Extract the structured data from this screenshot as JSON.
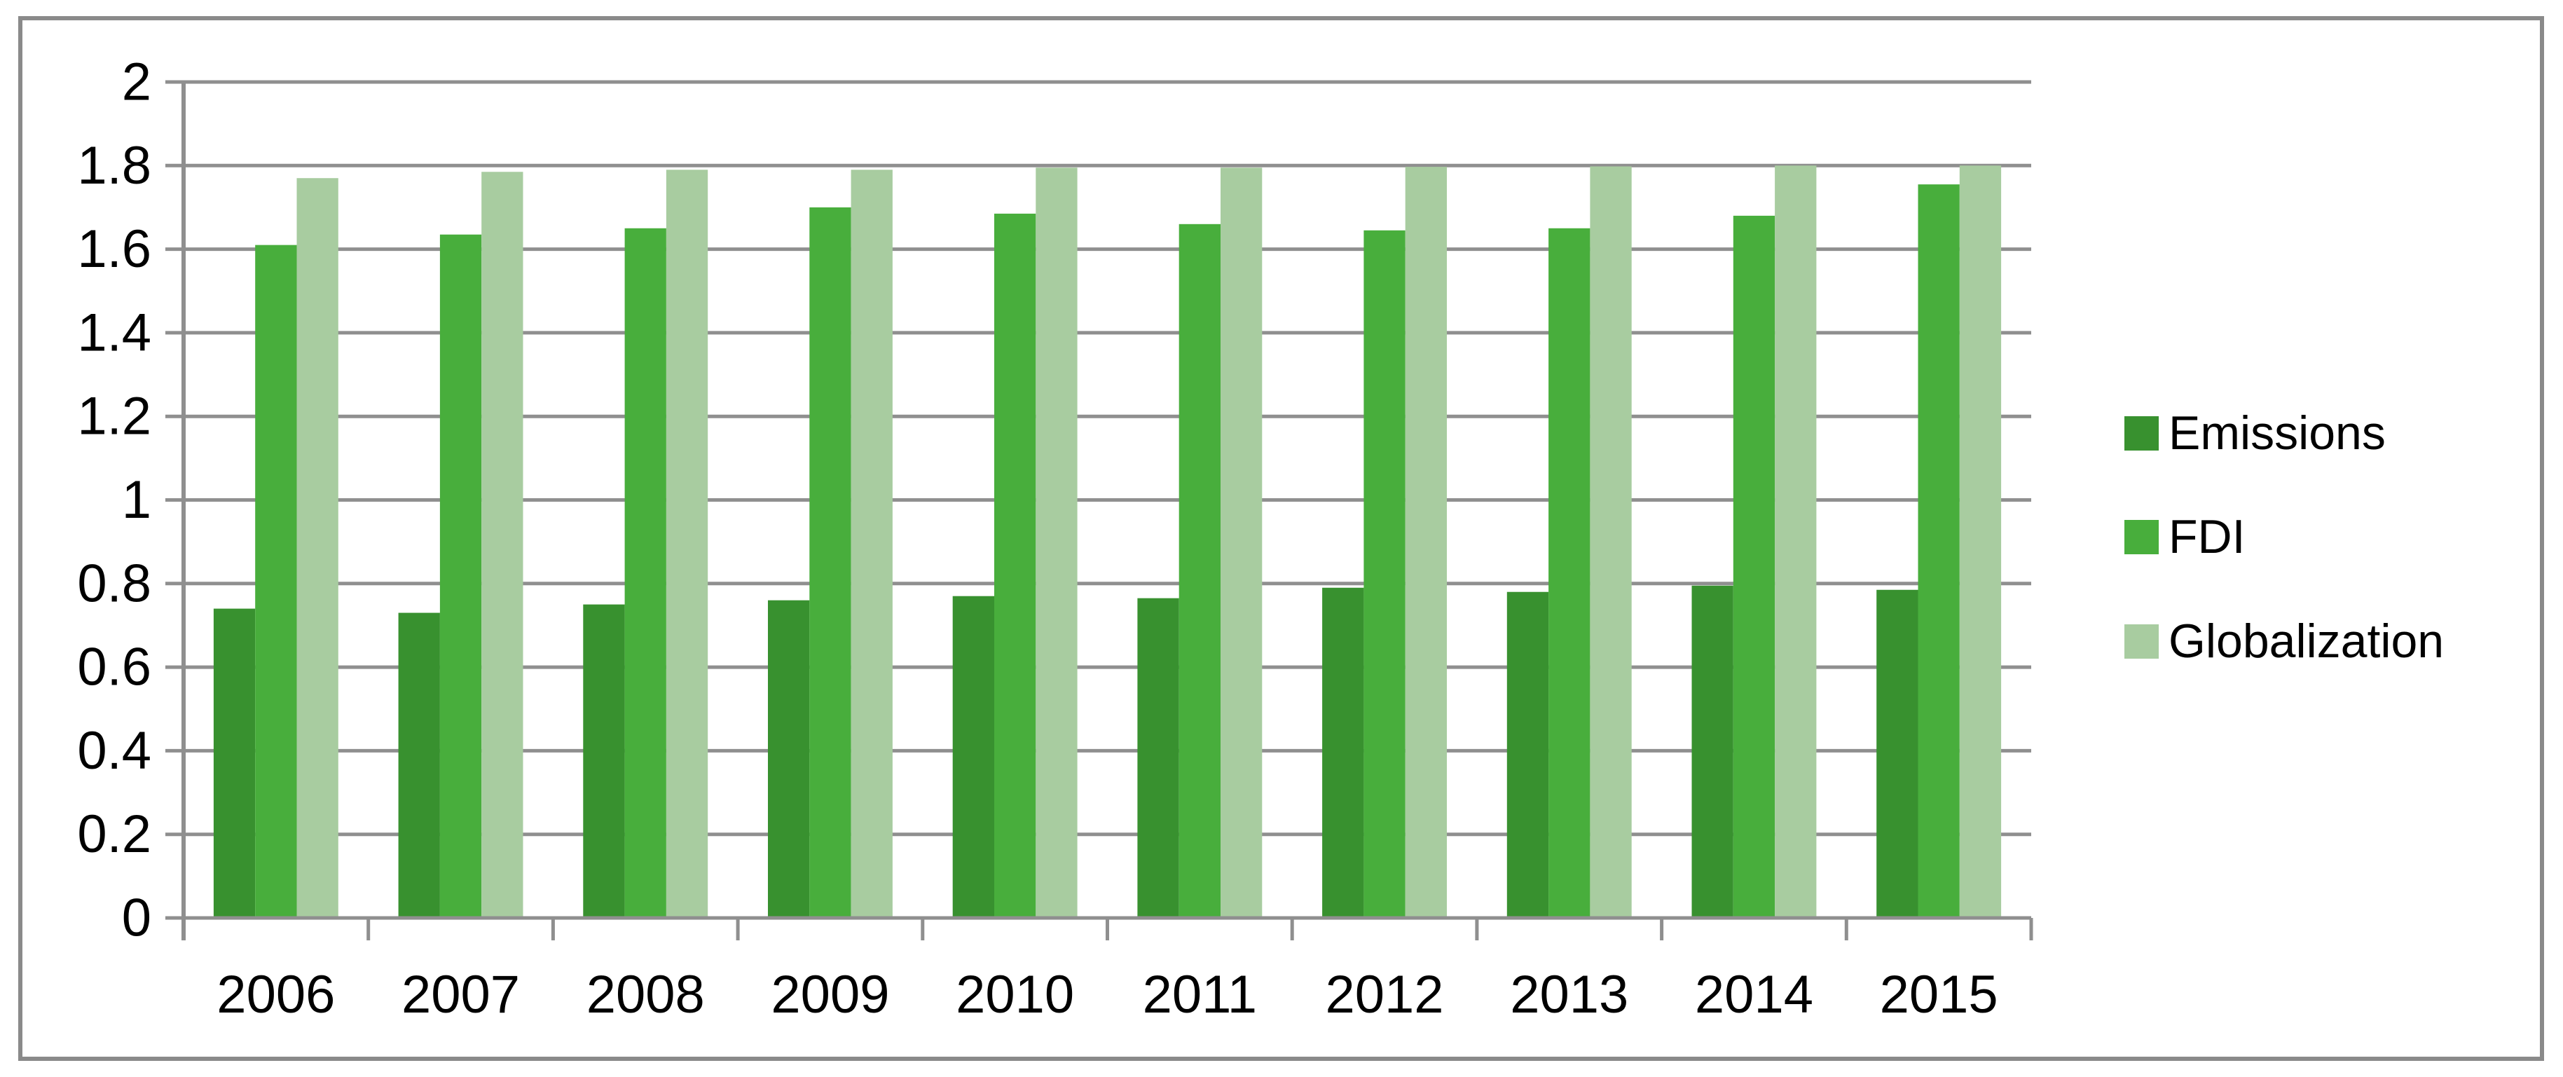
{
  "chart_data": {
    "type": "bar",
    "title": "",
    "xlabel": "",
    "ylabel": "",
    "categories": [
      "2006",
      "2007",
      "2008",
      "2009",
      "2010",
      "2011",
      "2012",
      "2013",
      "2014",
      "2015"
    ],
    "series": [
      {
        "name": "Emissions",
        "color": "#38912F",
        "values": [
          0.74,
          0.73,
          0.75,
          0.76,
          0.77,
          0.765,
          0.79,
          0.78,
          0.795,
          0.785
        ]
      },
      {
        "name": "FDI",
        "color": "#48AE3C",
        "values": [
          1.61,
          1.635,
          1.65,
          1.7,
          1.685,
          1.66,
          1.645,
          1.65,
          1.68,
          1.755
        ]
      },
      {
        "name": "Globalization",
        "color": "#A8CCA0",
        "values": [
          1.77,
          1.785,
          1.79,
          1.79,
          1.795,
          1.795,
          1.797,
          1.798,
          1.8,
          1.8
        ]
      }
    ],
    "ylim": [
      0,
      2
    ],
    "ytick_step": 0.2,
    "ytick_labels": [
      "0",
      "0.2",
      "0.4",
      "0.6",
      "0.8",
      "1",
      "1.2",
      "1.4",
      "1.6",
      "1.8",
      "2"
    ],
    "grid": true,
    "legend_position": "right"
  },
  "colors": {
    "gridline": "#8F8F8F",
    "axis": "#8F8F8F",
    "frame_border": "#8A8A8A",
    "text": "#000000",
    "background": "#FFFFFF"
  }
}
